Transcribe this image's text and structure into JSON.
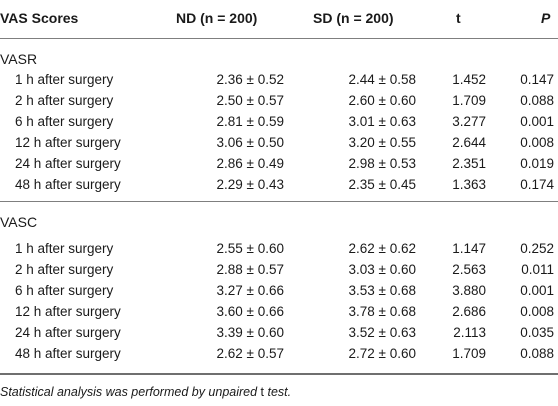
{
  "table": {
    "headers": [
      "VAS Scores",
      "ND (n = 200)",
      "SD (n = 200)",
      "t",
      "P"
    ],
    "groups": [
      {
        "label": "VASR",
        "rows": [
          {
            "time": "1 h after surgery",
            "nd": "2.36 ± 0.52",
            "sd": "2.44 ± 0.58",
            "t": "1.452",
            "p": "0.147"
          },
          {
            "time": "2 h after surgery",
            "nd": "2.50 ± 0.57",
            "sd": "2.60 ± 0.60",
            "t": "1.709",
            "p": "0.088"
          },
          {
            "time": "6 h after surgery",
            "nd": "2.81 ± 0.59",
            "sd": "3.01 ± 0.63",
            "t": "3.277",
            "p": "0.001"
          },
          {
            "time": "12 h after surgery",
            "nd": "3.06 ± 0.50",
            "sd": "3.20 ± 0.55",
            "t": "2.644",
            "p": "0.008"
          },
          {
            "time": "24 h after surgery",
            "nd": "2.86 ± 0.49",
            "sd": "2.98 ± 0.53",
            "t": "2.351",
            "p": "0.019"
          },
          {
            "time": "48 h after surgery",
            "nd": "2.29 ± 0.43",
            "sd": "2.35 ± 0.45",
            "t": "1.363",
            "p": "0.174"
          }
        ]
      },
      {
        "label": "VASC",
        "rows": [
          {
            "time": "1 h after surgery",
            "nd": "2.55 ± 0.60",
            "sd": "2.62 ± 0.62",
            "t": "1.147",
            "p": "0.252"
          },
          {
            "time": "2 h after surgery",
            "nd": "2.88 ± 0.57",
            "sd": "3.03 ± 0.60",
            "t": "2.563",
            "p": "0.011"
          },
          {
            "time": "6 h after surgery",
            "nd": "3.27 ± 0.66",
            "sd": "3.53 ± 0.68",
            "t": "3.880",
            "p": "0.001"
          },
          {
            "time": "12 h after surgery",
            "nd": "3.60 ± 0.66",
            "sd": "3.78 ± 0.68",
            "t": "2.686",
            "p": "0.008"
          },
          {
            "time": "24 h after surgery",
            "nd": "3.39 ± 0.60",
            "sd": "3.52 ± 0.63",
            "t": "2.113",
            "p": "0.035"
          },
          {
            "time": "48 h after surgery",
            "nd": "2.62 ± 0.57",
            "sd": "2.72 ± 0.60",
            "t": "1.709",
            "p": "0.088"
          }
        ]
      }
    ]
  },
  "footnote": {
    "before": "Statistical analysis was performed by unpaired ",
    "t": "t",
    "after": " test."
  }
}
